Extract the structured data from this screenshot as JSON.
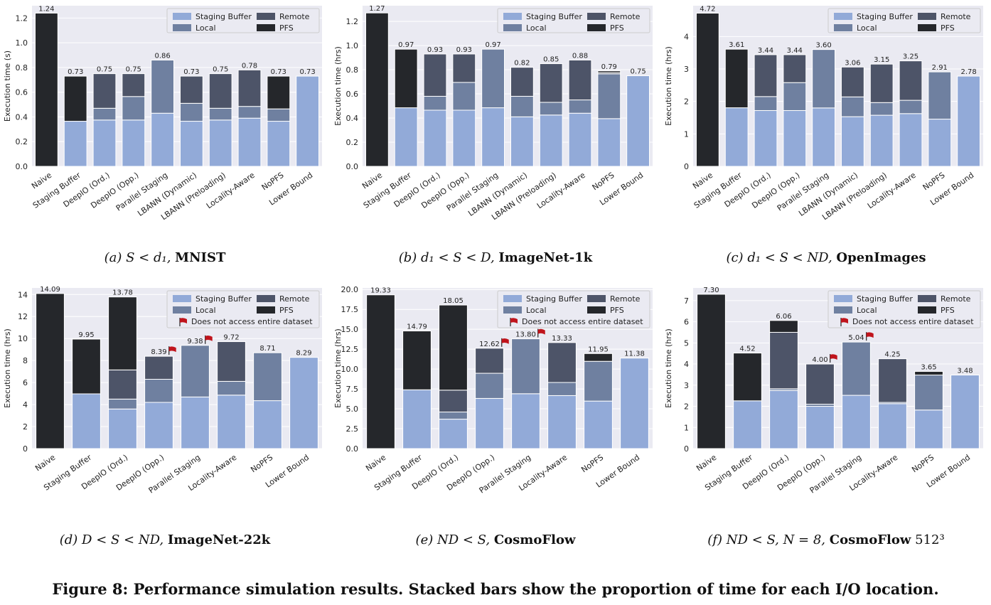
{
  "colors": {
    "staging": "#92aad8",
    "local": "#6f80a0",
    "remote": "#4d5468",
    "pfs": "#25272b",
    "plot_bg": "#eaeaf2",
    "grid": "#ffffff",
    "flag": "#c0141c"
  },
  "legend": {
    "staging": "Staging Buffer",
    "local": "Local",
    "remote": "Remote",
    "pfs": "PFS",
    "flag_note": "Does not access entire dataset"
  },
  "figure_caption": "Figure 8: Performance simulation results. Stacked bars show the proportion of time for each I/O location.",
  "chart_data": [
    {
      "type": "bar",
      "stacked": true,
      "caption": {
        "prefix": "(a) ",
        "cond": "S < d₁, ",
        "bold": "MNIST",
        "suffix": ""
      },
      "ylabel": "Execution time (s)",
      "ylim": [
        0,
        1.3
      ],
      "yticks": [
        "0.0",
        "0.2",
        "0.4",
        "0.6",
        "0.8",
        "1.0",
        "1.2"
      ],
      "ytick_values": [
        0,
        0.2,
        0.4,
        0.6,
        0.8,
        1.0,
        1.2
      ],
      "show_flag_legend": false,
      "categories": [
        "Naive",
        "Staging Buffer",
        "DeepIO (Ord.)",
        "DeepIO (Opp.)",
        "Parallel Staging",
        "LBANN (Dynamic)",
        "LBANN (Preloading)",
        "Locality-Aware",
        "NoPFS",
        "Lower Bound"
      ],
      "totals": [
        "1.24",
        "0.73",
        "0.75",
        "0.75",
        "0.86",
        "0.73",
        "0.75",
        "0.78",
        "0.73",
        "0.73"
      ],
      "flags": [
        false,
        false,
        false,
        false,
        false,
        false,
        false,
        false,
        false,
        false
      ],
      "series": [
        {
          "name": "Staging Buffer",
          "key": "staging",
          "values": [
            0,
            0.365,
            0.375,
            0.375,
            0.43,
            0.365,
            0.375,
            0.39,
            0.365,
            0.73
          ]
        },
        {
          "name": "Local",
          "key": "local",
          "values": [
            0,
            0,
            0.095,
            0.19,
            0.43,
            0.145,
            0.095,
            0.095,
            0.1,
            0
          ]
        },
        {
          "name": "Remote",
          "key": "remote",
          "values": [
            0,
            0,
            0.28,
            0.185,
            0,
            0.22,
            0.28,
            0.295,
            0,
            0
          ]
        },
        {
          "name": "PFS",
          "key": "pfs",
          "values": [
            1.24,
            0.365,
            0,
            0,
            0,
            0,
            0,
            0,
            0.265,
            0
          ]
        }
      ]
    },
    {
      "type": "bar",
      "stacked": true,
      "caption": {
        "prefix": "(b) ",
        "cond": "d₁ < S < D, ",
        "bold": "ImageNet-1k",
        "suffix": ""
      },
      "ylabel": "Execution time (hrs)",
      "ylim": [
        0,
        1.33
      ],
      "yticks": [
        "0.0",
        "0.2",
        "0.4",
        "0.6",
        "0.8",
        "1.0",
        "1.2"
      ],
      "ytick_values": [
        0,
        0.2,
        0.4,
        0.6,
        0.8,
        1.0,
        1.2
      ],
      "show_flag_legend": false,
      "categories": [
        "Naive",
        "Staging Buffer",
        "DeepIO (Ord.)",
        "DeepIO (Opp.)",
        "Parallel Staging",
        "LBANN (Dynamic)",
        "LBANN (Preloading)",
        "Locality-Aware",
        "NoPFS",
        "Lower Bound"
      ],
      "totals": [
        "1.27",
        "0.97",
        "0.93",
        "0.93",
        "0.97",
        "0.82",
        "0.85",
        "0.88",
        "0.79",
        "0.75"
      ],
      "flags": [
        false,
        false,
        false,
        false,
        false,
        false,
        false,
        false,
        false,
        false
      ],
      "series": [
        {
          "name": "Staging Buffer",
          "key": "staging",
          "values": [
            0,
            0.485,
            0.465,
            0.465,
            0.485,
            0.41,
            0.425,
            0.44,
            0.395,
            0.75
          ]
        },
        {
          "name": "Local",
          "key": "local",
          "values": [
            0,
            0,
            0.115,
            0.23,
            0.485,
            0.17,
            0.105,
            0.11,
            0.37,
            0
          ]
        },
        {
          "name": "Remote",
          "key": "remote",
          "values": [
            0,
            0,
            0.35,
            0.235,
            0,
            0.24,
            0.32,
            0.33,
            0.01,
            0
          ]
        },
        {
          "name": "PFS",
          "key": "pfs",
          "values": [
            1.27,
            0.485,
            0,
            0,
            0,
            0,
            0,
            0,
            0.015,
            0
          ]
        }
      ]
    },
    {
      "type": "bar",
      "stacked": true,
      "caption": {
        "prefix": "(c) ",
        "cond": "d₁ < S < ND, ",
        "bold": "OpenImages",
        "suffix": ""
      },
      "ylabel": "Execution time (hrs)",
      "ylim": [
        0,
        4.95
      ],
      "yticks": [
        "0",
        "1",
        "2",
        "3",
        "4"
      ],
      "ytick_values": [
        0,
        1,
        2,
        3,
        4
      ],
      "show_flag_legend": false,
      "categories": [
        "Naive",
        "Staging Buffer",
        "DeepIO (Ord.)",
        "DeepIO (Opp.)",
        "Parallel Staging",
        "LBANN (Dynamic)",
        "LBANN (Preloading)",
        "Locality-Aware",
        "NoPFS",
        "Lower Bound"
      ],
      "totals": [
        "4.72",
        "3.61",
        "3.44",
        "3.44",
        "3.60",
        "3.06",
        "3.15",
        "3.25",
        "2.91",
        "2.78"
      ],
      "flags": [
        false,
        false,
        false,
        false,
        false,
        false,
        false,
        false,
        false,
        false
      ],
      "series": [
        {
          "name": "Staging Buffer",
          "key": "staging",
          "values": [
            0,
            1.805,
            1.72,
            1.72,
            1.8,
            1.53,
            1.575,
            1.625,
            1.455,
            2.78
          ]
        },
        {
          "name": "Local",
          "key": "local",
          "values": [
            0,
            0,
            0.43,
            0.86,
            1.8,
            0.61,
            0.39,
            0.41,
            1.455,
            0
          ]
        },
        {
          "name": "Remote",
          "key": "remote",
          "values": [
            0,
            0,
            1.29,
            0.86,
            0,
            0.92,
            1.185,
            1.215,
            0,
            0
          ]
        },
        {
          "name": "PFS",
          "key": "pfs",
          "values": [
            4.72,
            1.805,
            0,
            0,
            0,
            0,
            0,
            0,
            0,
            0
          ]
        }
      ]
    },
    {
      "type": "bar",
      "stacked": true,
      "caption": {
        "prefix": "(d) ",
        "cond": "D < S < ND, ",
        "bold": "ImageNet-22k",
        "suffix": ""
      },
      "ylabel": "Execution time (hrs)",
      "ylim": [
        0,
        14.6
      ],
      "yticks": [
        "0",
        "2",
        "4",
        "6",
        "8",
        "10",
        "12",
        "14"
      ],
      "ytick_values": [
        0,
        2,
        4,
        6,
        8,
        10,
        12,
        14
      ],
      "show_flag_legend": true,
      "categories": [
        "Naive",
        "Staging Buffer",
        "DeepIO (Ord.)",
        "DeepIO (Opp.)",
        "Parallel Staging",
        "Locality-Aware",
        "NoPFS",
        "Lower Bound"
      ],
      "totals": [
        "14.09",
        "9.95",
        "13.78",
        "8.39",
        "9.38",
        "9.72",
        "8.71",
        "8.29"
      ],
      "flags": [
        false,
        false,
        false,
        true,
        true,
        false,
        false,
        false
      ],
      "series": [
        {
          "name": "Staging Buffer",
          "key": "staging",
          "values": [
            0,
            4.975,
            3.6,
            4.2,
            4.69,
            4.86,
            4.355,
            8.29
          ]
        },
        {
          "name": "Local",
          "key": "local",
          "values": [
            0,
            0,
            0.9,
            2.1,
            4.69,
            1.25,
            4.355,
            0
          ]
        },
        {
          "name": "Remote",
          "key": "remote",
          "values": [
            0,
            0,
            2.65,
            2.09,
            0,
            3.61,
            0,
            0
          ]
        },
        {
          "name": "PFS",
          "key": "pfs",
          "values": [
            14.09,
            4.975,
            6.63,
            0,
            0,
            0,
            0,
            0
          ]
        }
      ]
    },
    {
      "type": "bar",
      "stacked": true,
      "caption": {
        "prefix": "(e) ",
        "cond": "ND < S, ",
        "bold": "CosmoFlow",
        "suffix": ""
      },
      "ylabel": "Execution time (hrs)",
      "ylim": [
        0,
        20.2
      ],
      "yticks": [
        "0.0",
        "2.5",
        "5.0",
        "7.5",
        "10.0",
        "12.5",
        "15.0",
        "17.5",
        "20.0"
      ],
      "ytick_values": [
        0,
        2.5,
        5,
        7.5,
        10,
        12.5,
        15,
        17.5,
        20
      ],
      "show_flag_legend": true,
      "categories": [
        "Naive",
        "Staging Buffer",
        "DeepIO (Ord.)",
        "DeepIO (Opp.)",
        "Parallel Staging",
        "Locality-Aware",
        "NoPFS",
        "Lower Bound"
      ],
      "totals": [
        "19.33",
        "14.79",
        "18.05",
        "12.62",
        "13.80",
        "13.33",
        "11.95",
        "11.38"
      ],
      "flags": [
        false,
        false,
        false,
        true,
        true,
        false,
        false,
        false
      ],
      "series": [
        {
          "name": "Staging Buffer",
          "key": "staging",
          "values": [
            0,
            7.395,
            3.7,
            6.31,
            6.9,
            6.665,
            5.975,
            11.38
          ]
        },
        {
          "name": "Local",
          "key": "local",
          "values": [
            0,
            0,
            0.9,
            3.16,
            6.9,
            1.65,
            5.0,
            0
          ]
        },
        {
          "name": "Remote",
          "key": "remote",
          "values": [
            0,
            0,
            2.75,
            3.15,
            0,
            5.015,
            0,
            0
          ]
        },
        {
          "name": "PFS",
          "key": "pfs",
          "values": [
            19.33,
            7.395,
            10.7,
            0,
            0,
            0,
            0.975,
            0
          ]
        }
      ]
    },
    {
      "type": "bar",
      "stacked": true,
      "caption": {
        "prefix": "(f) ",
        "cond": "ND < S, N = 8, ",
        "bold": "CosmoFlow",
        "suffix": " 512³"
      },
      "ylabel": "Execution time (hrs)",
      "ylim": [
        0,
        7.6
      ],
      "yticks": [
        "0",
        "1",
        "2",
        "3",
        "4",
        "5",
        "6",
        "7"
      ],
      "ytick_values": [
        0,
        1,
        2,
        3,
        4,
        5,
        6,
        7
      ],
      "show_flag_legend": true,
      "categories": [
        "Naive",
        "Staging Buffer",
        "DeepIO (Ord.)",
        "DeepIO (Opp.)",
        "Parallel Staging",
        "Locality-Aware",
        "NoPFS",
        "Lower Bound"
      ],
      "totals": [
        "7.30",
        "4.52",
        "6.06",
        "4.00",
        "5.04",
        "4.25",
        "3.65",
        "3.48"
      ],
      "flags": [
        false,
        false,
        false,
        true,
        true,
        false,
        false,
        false
      ],
      "series": [
        {
          "name": "Staging Buffer",
          "key": "staging",
          "values": [
            0,
            2.26,
            2.75,
            2.0,
            2.52,
            2.125,
            1.825,
            3.48
          ]
        },
        {
          "name": "Local",
          "key": "local",
          "values": [
            0,
            0,
            0.08,
            0.1,
            2.52,
            0.06,
            1.655,
            0
          ]
        },
        {
          "name": "Remote",
          "key": "remote",
          "values": [
            0,
            0,
            2.67,
            1.9,
            0,
            2.065,
            0,
            0
          ]
        },
        {
          "name": "PFS",
          "key": "pfs",
          "values": [
            7.3,
            2.26,
            0.56,
            0,
            0,
            0,
            0.17,
            0
          ]
        }
      ]
    }
  ]
}
